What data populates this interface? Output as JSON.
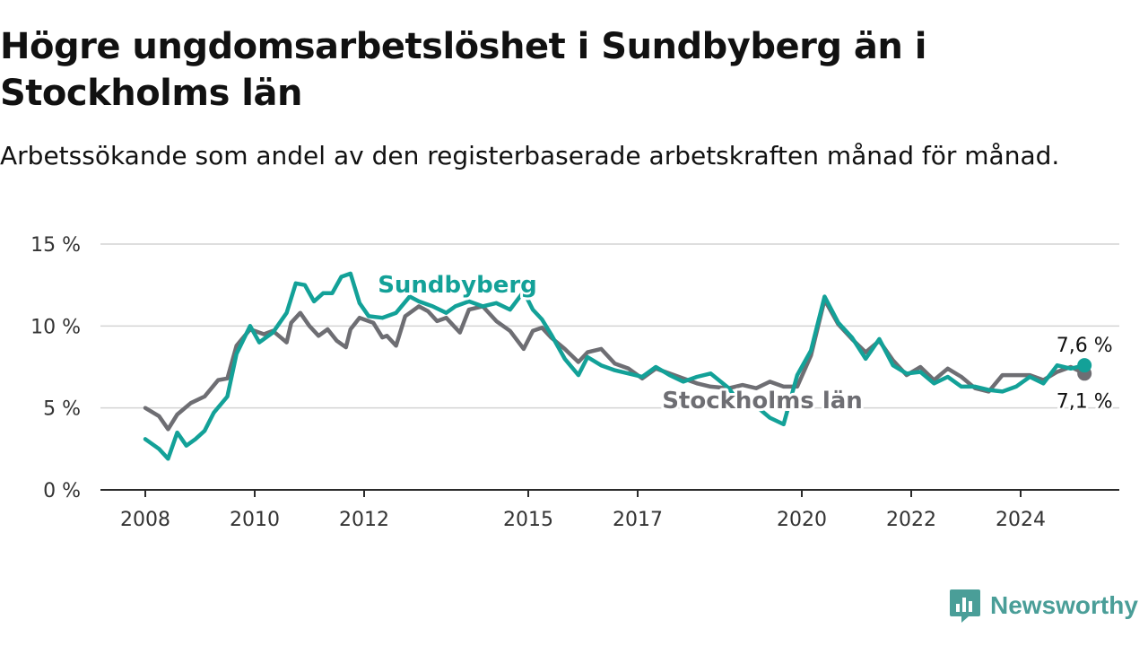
{
  "title": "Högre ungdomsarbetslöshet i Sundbyberg än i Stockholms län",
  "subtitle": "Arbetssökande som andel av den registerbaserade arbetskraften månad för månad.",
  "brand": {
    "name": "Newsworthy",
    "color": "#4a9e98",
    "icon": "newsworthy-logo-icon"
  },
  "chart_data": {
    "type": "line",
    "title": "Högre ungdomsarbetslöshet i Sundbyberg än i Stockholms län",
    "subtitle": "Arbetssökande som andel av den registerbaserade arbetskraften månad för månad.",
    "xlabel": "",
    "ylabel": "",
    "x_ticks": [
      "2008",
      "2010",
      "2012",
      "2015",
      "2017",
      "2020",
      "2022",
      "2024"
    ],
    "y_ticks": [
      {
        "value": 0,
        "label": "0 %"
      },
      {
        "value": 5,
        "label": "5 %"
      },
      {
        "value": 10,
        "label": "10 %"
      },
      {
        "value": 15,
        "label": "15 %"
      }
    ],
    "xlim": [
      "2008-01",
      "2025-06"
    ],
    "ylim": [
      0,
      15
    ],
    "grid": "horizontal",
    "series": [
      {
        "name": "Stockholms län",
        "color": "#6e6e73",
        "end_label": "7,1 %",
        "points": [
          [
            "2008-01",
            5.0
          ],
          [
            "2008-04",
            4.5
          ],
          [
            "2008-06",
            3.7
          ],
          [
            "2008-08",
            4.6
          ],
          [
            "2008-11",
            5.3
          ],
          [
            "2009-02",
            5.7
          ],
          [
            "2009-05",
            6.7
          ],
          [
            "2009-07",
            6.8
          ],
          [
            "2009-09",
            8.8
          ],
          [
            "2009-12",
            9.8
          ],
          [
            "2010-03",
            9.5
          ],
          [
            "2010-05",
            9.7
          ],
          [
            "2010-08",
            9.0
          ],
          [
            "2010-09",
            10.2
          ],
          [
            "2010-11",
            10.8
          ],
          [
            "2011-01",
            10.0
          ],
          [
            "2011-03",
            9.4
          ],
          [
            "2011-05",
            9.8
          ],
          [
            "2011-07",
            9.1
          ],
          [
            "2011-09",
            8.7
          ],
          [
            "2011-10",
            9.8
          ],
          [
            "2011-12",
            10.5
          ],
          [
            "2012-03",
            10.2
          ],
          [
            "2012-05",
            9.3
          ],
          [
            "2012-06",
            9.4
          ],
          [
            "2012-08",
            8.8
          ],
          [
            "2012-10",
            10.6
          ],
          [
            "2013-01",
            11.2
          ],
          [
            "2013-03",
            10.9
          ],
          [
            "2013-05",
            10.3
          ],
          [
            "2013-07",
            10.5
          ],
          [
            "2013-10",
            9.6
          ],
          [
            "2013-12",
            11.0
          ],
          [
            "2014-03",
            11.2
          ],
          [
            "2014-06",
            10.3
          ],
          [
            "2014-09",
            9.7
          ],
          [
            "2014-12",
            8.6
          ],
          [
            "2015-02",
            9.7
          ],
          [
            "2015-04",
            9.9
          ],
          [
            "2015-06",
            9.3
          ],
          [
            "2015-09",
            8.6
          ],
          [
            "2015-12",
            7.8
          ],
          [
            "2016-02",
            8.4
          ],
          [
            "2016-05",
            8.6
          ],
          [
            "2016-08",
            7.7
          ],
          [
            "2016-11",
            7.4
          ],
          [
            "2017-02",
            6.8
          ],
          [
            "2017-05",
            7.4
          ],
          [
            "2017-08",
            7.1
          ],
          [
            "2017-11",
            6.8
          ],
          [
            "2018-02",
            6.5
          ],
          [
            "2018-05",
            6.3
          ],
          [
            "2018-09",
            6.2
          ],
          [
            "2018-12",
            6.4
          ],
          [
            "2019-03",
            6.2
          ],
          [
            "2019-06",
            6.6
          ],
          [
            "2019-09",
            6.3
          ],
          [
            "2019-12",
            6.3
          ],
          [
            "2020-03",
            8.2
          ],
          [
            "2020-06",
            11.6
          ],
          [
            "2020-09",
            10.1
          ],
          [
            "2020-12",
            9.2
          ],
          [
            "2021-03",
            8.4
          ],
          [
            "2021-06",
            9.1
          ],
          [
            "2021-09",
            7.9
          ],
          [
            "2021-12",
            7.0
          ],
          [
            "2022-03",
            7.5
          ],
          [
            "2022-06",
            6.7
          ],
          [
            "2022-09",
            7.4
          ],
          [
            "2022-12",
            6.9
          ],
          [
            "2023-03",
            6.2
          ],
          [
            "2023-06",
            6.0
          ],
          [
            "2023-09",
            7.0
          ],
          [
            "2023-12",
            7.0
          ],
          [
            "2024-03",
            7.0
          ],
          [
            "2024-06",
            6.7
          ],
          [
            "2024-09",
            7.2
          ],
          [
            "2024-12",
            7.5
          ],
          [
            "2025-03",
            7.1
          ]
        ]
      },
      {
        "name": "Sundbyberg",
        "color": "#13a198",
        "end_label": "7,6 %",
        "points": [
          [
            "2008-01",
            3.1
          ],
          [
            "2008-04",
            2.5
          ],
          [
            "2008-06",
            1.9
          ],
          [
            "2008-08",
            3.5
          ],
          [
            "2008-10",
            2.7
          ],
          [
            "2008-12",
            3.1
          ],
          [
            "2009-02",
            3.6
          ],
          [
            "2009-04",
            4.7
          ],
          [
            "2009-07",
            5.7
          ],
          [
            "2009-09",
            8.3
          ],
          [
            "2009-12",
            10.0
          ],
          [
            "2010-02",
            9.0
          ],
          [
            "2010-05",
            9.6
          ],
          [
            "2010-08",
            10.8
          ],
          [
            "2010-10",
            12.6
          ],
          [
            "2010-12",
            12.5
          ],
          [
            "2011-02",
            11.5
          ],
          [
            "2011-04",
            12.0
          ],
          [
            "2011-06",
            12.0
          ],
          [
            "2011-08",
            13.0
          ],
          [
            "2011-10",
            13.2
          ],
          [
            "2011-12",
            11.4
          ],
          [
            "2012-02",
            10.6
          ],
          [
            "2012-05",
            10.5
          ],
          [
            "2012-08",
            10.8
          ],
          [
            "2012-11",
            11.8
          ],
          [
            "2013-01",
            11.5
          ],
          [
            "2013-04",
            11.2
          ],
          [
            "2013-07",
            10.8
          ],
          [
            "2013-09",
            11.2
          ],
          [
            "2013-12",
            11.5
          ],
          [
            "2014-03",
            11.2
          ],
          [
            "2014-06",
            11.4
          ],
          [
            "2014-09",
            11.0
          ],
          [
            "2014-12",
            12.1
          ],
          [
            "2015-02",
            11.0
          ],
          [
            "2015-04",
            10.4
          ],
          [
            "2015-06",
            9.5
          ],
          [
            "2015-09",
            8.0
          ],
          [
            "2015-12",
            7.0
          ],
          [
            "2016-02",
            8.1
          ],
          [
            "2016-05",
            7.6
          ],
          [
            "2016-08",
            7.3
          ],
          [
            "2016-11",
            7.1
          ],
          [
            "2017-02",
            6.9
          ],
          [
            "2017-05",
            7.5
          ],
          [
            "2017-08",
            7.0
          ],
          [
            "2017-11",
            6.6
          ],
          [
            "2018-02",
            6.9
          ],
          [
            "2018-05",
            7.1
          ],
          [
            "2018-09",
            6.2
          ],
          [
            "2018-12",
            5.0
          ],
          [
            "2019-03",
            5.1
          ],
          [
            "2019-06",
            4.4
          ],
          [
            "2019-09",
            4.0
          ],
          [
            "2019-12",
            7.0
          ],
          [
            "2020-03",
            8.5
          ],
          [
            "2020-06",
            11.8
          ],
          [
            "2020-09",
            10.2
          ],
          [
            "2020-12",
            9.3
          ],
          [
            "2021-03",
            8.0
          ],
          [
            "2021-06",
            9.2
          ],
          [
            "2021-09",
            7.6
          ],
          [
            "2021-12",
            7.1
          ],
          [
            "2022-03",
            7.2
          ],
          [
            "2022-06",
            6.5
          ],
          [
            "2022-09",
            6.9
          ],
          [
            "2022-12",
            6.3
          ],
          [
            "2023-03",
            6.3
          ],
          [
            "2023-06",
            6.1
          ],
          [
            "2023-09",
            6.0
          ],
          [
            "2023-12",
            6.3
          ],
          [
            "2024-03",
            6.9
          ],
          [
            "2024-06",
            6.5
          ],
          [
            "2024-09",
            7.6
          ],
          [
            "2024-12",
            7.4
          ],
          [
            "2025-03",
            7.6
          ]
        ]
      }
    ]
  }
}
